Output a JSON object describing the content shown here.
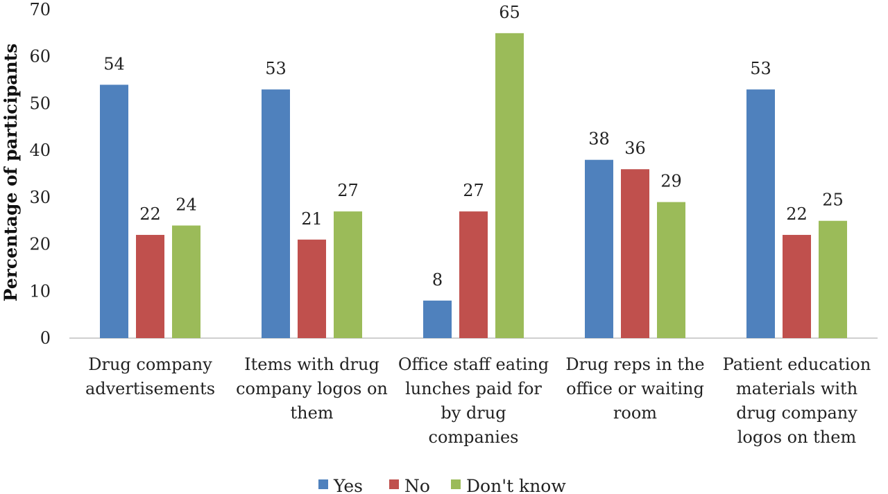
{
  "chart_data": {
    "type": "bar",
    "ylabel": "Percentage of participants",
    "xlabel": "",
    "ylim": [
      0,
      70
    ],
    "yticks": [
      0,
      10,
      20,
      30,
      40,
      50,
      60,
      70
    ],
    "grid": false,
    "legend_position": "bottom",
    "categories": [
      [
        "Drug company",
        "advertisements"
      ],
      [
        "Items with drug",
        "company logos on",
        "them"
      ],
      [
        "Office staff eating",
        "lunches paid for",
        "by drug",
        "companies"
      ],
      [
        "Drug reps in the",
        "office or waiting",
        "room"
      ],
      [
        "Patient education",
        "materials with",
        "drug company",
        "logos on them"
      ]
    ],
    "series": [
      {
        "name": "Yes",
        "color": "#4f81bd",
        "values": [
          54,
          53,
          8,
          38,
          53
        ]
      },
      {
        "name": "No",
        "color": "#c0504d",
        "values": [
          22,
          21,
          27,
          36,
          22
        ]
      },
      {
        "name": "Don't know",
        "color": "#9bbb59",
        "values": [
          24,
          27,
          65,
          29,
          25
        ]
      }
    ]
  }
}
